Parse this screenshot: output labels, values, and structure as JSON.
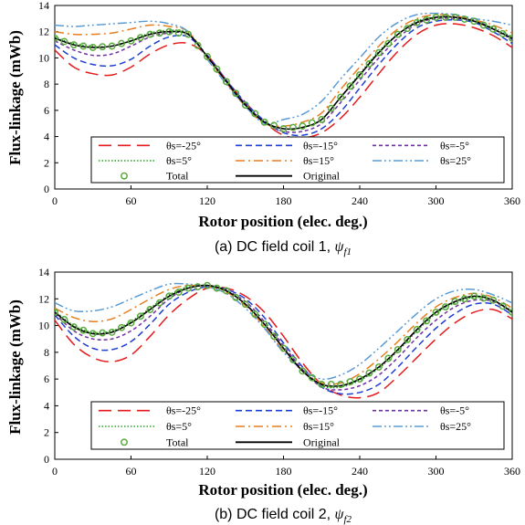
{
  "chart_data": [
    {
      "type": "line",
      "caption": {
        "text": "(a) DC field coil 1, ",
        "symbol": "ψ",
        "subscript": "f1"
      },
      "xlabel": "Rotor position (elec. deg.)",
      "ylabel": "Flux-linkage (mWb)",
      "xlim": [
        0,
        360
      ],
      "ylim": [
        0,
        14
      ],
      "xticks": [
        "0",
        "60",
        "120",
        "180",
        "240",
        "300",
        "360"
      ],
      "yticks": [
        "0",
        "2",
        "4",
        "6",
        "8",
        "10",
        "12",
        "14"
      ],
      "grid": false,
      "legend": "bottom-center",
      "x": [
        0,
        15,
        30,
        45,
        60,
        75,
        90,
        105,
        120,
        135,
        150,
        165,
        180,
        195,
        210,
        225,
        240,
        255,
        270,
        285,
        300,
        315,
        330,
        345,
        360
      ],
      "series": [
        {
          "name": "θs=-25°",
          "color": "#e41a1c",
          "style": "long-dash",
          "values": [
            10.6,
            9.3,
            8.8,
            8.7,
            9.3,
            10.3,
            11.0,
            11.1,
            10.2,
            8.3,
            6.6,
            5.1,
            4.1,
            3.9,
            4.3,
            5.4,
            7.0,
            8.8,
            10.5,
            11.8,
            12.5,
            12.6,
            12.3,
            11.7,
            10.8
          ]
        },
        {
          "name": "θs=-15°",
          "color": "#1f3fd0",
          "style": "dash",
          "values": [
            11.0,
            10.0,
            9.5,
            9.4,
            9.9,
            10.9,
            11.6,
            11.6,
            10.2,
            8.3,
            6.6,
            5.2,
            4.3,
            4.1,
            4.6,
            5.9,
            7.7,
            9.5,
            11.1,
            12.3,
            12.8,
            12.9,
            12.7,
            12.0,
            11.1
          ]
        },
        {
          "name": "θs=-5°",
          "color": "#7030a0",
          "style": "short-dash",
          "values": [
            11.3,
            10.6,
            10.2,
            10.3,
            10.9,
            11.6,
            11.9,
            11.8,
            10.1,
            8.3,
            6.5,
            5.1,
            4.4,
            4.4,
            5.0,
            6.6,
            8.3,
            10.0,
            11.5,
            12.6,
            13.0,
            13.0,
            12.9,
            12.2,
            11.4
          ]
        },
        {
          "name": "θs=5°",
          "color": "#2ca02c",
          "style": "dot",
          "values": [
            11.6,
            11.1,
            10.9,
            10.9,
            11.3,
            11.9,
            12.1,
            11.9,
            10.1,
            8.2,
            6.4,
            5.1,
            4.6,
            4.7,
            5.3,
            7.0,
            8.8,
            10.5,
            11.8,
            12.8,
            13.1,
            13.1,
            12.8,
            12.3,
            11.6
          ]
        },
        {
          "name": "θs=15°",
          "color": "#e67e22",
          "style": "dash-dot",
          "values": [
            12.0,
            11.8,
            11.8,
            11.9,
            12.2,
            12.5,
            12.4,
            12.0,
            10.0,
            8.1,
            6.3,
            5.0,
            4.8,
            5.1,
            5.8,
            7.6,
            9.3,
            10.9,
            12.2,
            13.0,
            13.3,
            13.2,
            12.9,
            12.5,
            11.9
          ]
        },
        {
          "name": "θs=25°",
          "color": "#5b9bd5",
          "style": "dash-dot-dot",
          "values": [
            12.5,
            12.4,
            12.5,
            12.6,
            12.7,
            12.8,
            12.6,
            12.0,
            9.9,
            8.0,
            6.3,
            5.0,
            5.3,
            5.7,
            6.7,
            8.4,
            10.0,
            11.6,
            12.7,
            13.3,
            13.4,
            13.3,
            13.0,
            12.8,
            12.5
          ]
        },
        {
          "name": "Total",
          "color": "#5aaa3c",
          "style": "markers",
          "values": [
            11.5,
            11.0,
            10.8,
            10.9,
            11.3,
            11.8,
            12.0,
            11.8,
            10.1,
            8.2,
            6.4,
            5.1,
            4.6,
            4.8,
            5.3,
            7.0,
            8.7,
            10.4,
            11.8,
            12.7,
            13.1,
            13.1,
            12.8,
            12.2,
            11.5
          ]
        },
        {
          "name": "Original",
          "color": "#000000",
          "style": "solid",
          "values": [
            11.5,
            11.0,
            10.8,
            10.9,
            11.3,
            11.8,
            12.0,
            11.8,
            10.1,
            8.2,
            6.4,
            5.1,
            4.6,
            4.7,
            5.3,
            7.0,
            8.7,
            10.4,
            11.8,
            12.7,
            13.1,
            13.1,
            12.8,
            12.2,
            11.5
          ]
        }
      ]
    },
    {
      "type": "line",
      "caption": {
        "text": "(b) DC field coil 2, ",
        "symbol": "ψ",
        "subscript": "f2"
      },
      "xlabel": "Rotor position (elec. deg.)",
      "ylabel": "Flux-linkage (mWb)",
      "xlim": [
        0,
        360
      ],
      "ylim": [
        0,
        14
      ],
      "xticks": [
        "0",
        "60",
        "120",
        "180",
        "240",
        "300",
        "360"
      ],
      "yticks": [
        "0",
        "2",
        "4",
        "6",
        "8",
        "10",
        "12",
        "14"
      ],
      "grid": false,
      "legend": "bottom-center",
      "x": [
        0,
        15,
        30,
        45,
        60,
        75,
        90,
        105,
        120,
        135,
        150,
        165,
        180,
        195,
        210,
        225,
        240,
        255,
        270,
        285,
        300,
        315,
        330,
        345,
        360
      ],
      "series": [
        {
          "name": "θs=-25°",
          "color": "#e41a1c",
          "style": "long-dash",
          "values": [
            10.4,
            8.6,
            7.6,
            7.3,
            7.8,
            9.2,
            10.8,
            12.0,
            12.8,
            12.8,
            12.2,
            11.0,
            9.2,
            7.2,
            5.6,
            4.8,
            4.6,
            5.0,
            6.2,
            7.6,
            9.0,
            10.2,
            11.0,
            11.2,
            10.5
          ]
        },
        {
          "name": "θs=-15°",
          "color": "#1f3fd0",
          "style": "dash",
          "values": [
            10.8,
            9.2,
            8.3,
            8.2,
            8.8,
            10.1,
            11.6,
            12.5,
            12.9,
            12.7,
            12.0,
            10.6,
            8.7,
            6.9,
            5.4,
            4.9,
            5.0,
            5.6,
            6.9,
            8.4,
            9.8,
            10.9,
            11.6,
            11.6,
            10.8
          ]
        },
        {
          "name": "θs=-5°",
          "color": "#7030a0",
          "style": "short-dash",
          "values": [
            10.9,
            9.6,
            9.0,
            9.0,
            9.6,
            10.7,
            12.0,
            12.8,
            13.0,
            12.6,
            11.8,
            10.3,
            8.5,
            6.7,
            5.4,
            5.2,
            5.5,
            6.3,
            7.6,
            9.1,
            10.4,
            11.4,
            11.9,
            11.8,
            11.0
          ]
        },
        {
          "name": "θs=5°",
          "color": "#2ca02c",
          "style": "dot",
          "values": [
            11.1,
            10.0,
            9.5,
            9.6,
            10.3,
            11.3,
            12.3,
            12.9,
            13.0,
            12.6,
            11.6,
            10.1,
            8.3,
            6.6,
            5.5,
            5.4,
            5.9,
            6.8,
            8.1,
            9.6,
            10.9,
            11.7,
            12.1,
            11.9,
            11.1
          ]
        },
        {
          "name": "θs=15°",
          "color": "#e67e22",
          "style": "dash-dot",
          "values": [
            11.3,
            10.6,
            10.3,
            10.5,
            11.2,
            12.0,
            12.7,
            13.0,
            12.9,
            12.5,
            11.5,
            9.9,
            8.1,
            6.6,
            5.7,
            5.7,
            6.4,
            7.5,
            8.8,
            10.2,
            11.4,
            12.1,
            12.4,
            12.1,
            11.3
          ]
        },
        {
          "name": "θs=25°",
          "color": "#5b9bd5",
          "style": "dash-dot-dot",
          "values": [
            11.7,
            11.1,
            11.1,
            11.4,
            12.0,
            12.6,
            13.1,
            13.1,
            12.9,
            12.4,
            11.3,
            9.8,
            8.0,
            6.7,
            6.0,
            6.3,
            7.1,
            8.3,
            9.6,
            10.9,
            12.0,
            12.6,
            12.7,
            12.3,
            11.7
          ]
        },
        {
          "name": "Total",
          "color": "#5aaa3c",
          "style": "markers",
          "values": [
            11.0,
            9.9,
            9.4,
            9.5,
            10.2,
            11.2,
            12.2,
            12.8,
            13.0,
            12.6,
            11.6,
            10.1,
            8.3,
            6.6,
            5.6,
            5.6,
            6.0,
            6.9,
            8.2,
            9.7,
            11.0,
            11.8,
            12.2,
            11.9,
            11.0
          ]
        },
        {
          "name": "Original",
          "color": "#000000",
          "style": "solid",
          "values": [
            11.0,
            9.9,
            9.4,
            9.5,
            10.2,
            11.2,
            12.2,
            12.8,
            13.0,
            12.6,
            11.6,
            10.1,
            8.3,
            6.6,
            5.6,
            5.5,
            6.0,
            6.9,
            8.2,
            9.7,
            11.0,
            11.8,
            12.2,
            11.9,
            11.0
          ]
        }
      ]
    }
  ]
}
